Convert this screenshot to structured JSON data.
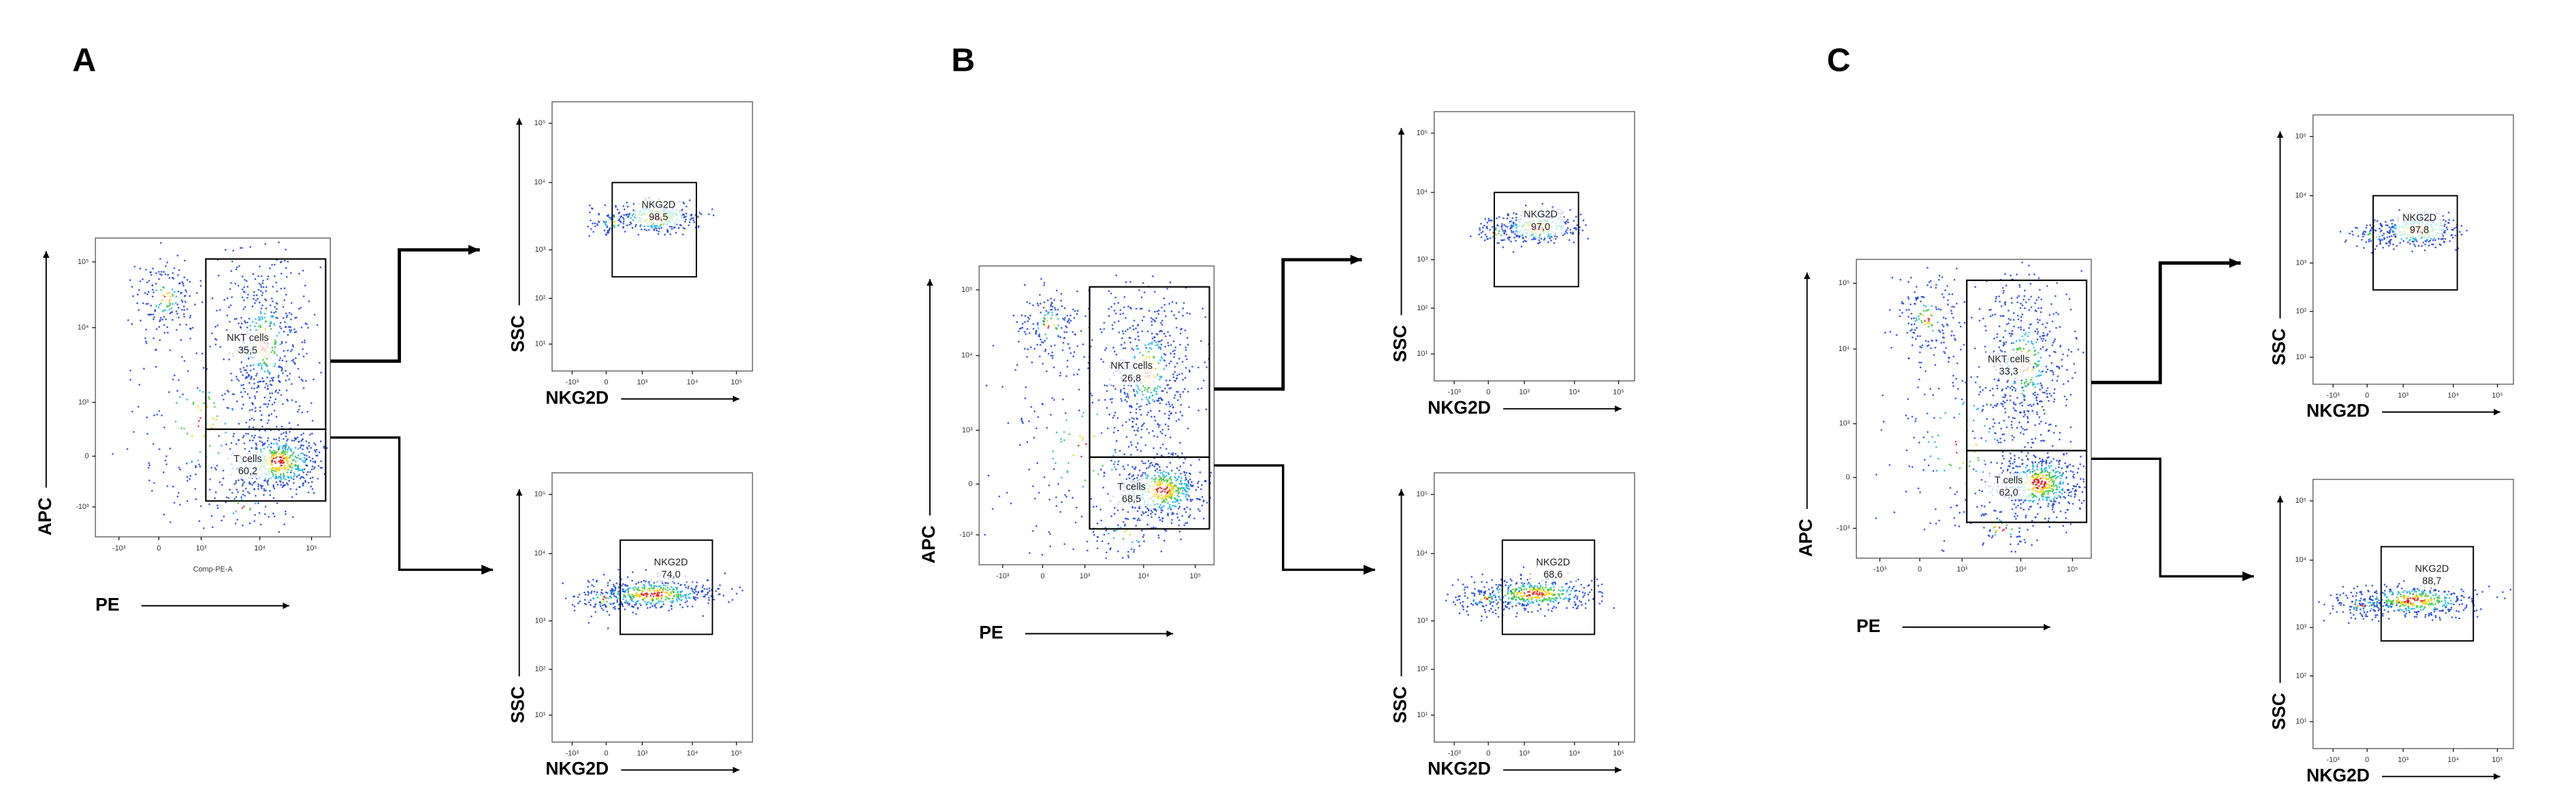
{
  "panels": [
    {
      "label": "A",
      "main": {
        "x_label": "PE",
        "y_label": "APC",
        "x_axis_title": "Comp-PE-A",
        "x_ticks": [
          "-10³",
          "0",
          "10³",
          "10⁴",
          "10⁵"
        ],
        "y_ticks": [
          "-10³",
          "0",
          "10³",
          "10⁴",
          "10⁵"
        ],
        "gates": [
          {
            "name": "NKT cells",
            "value": "35,5"
          },
          {
            "name": "T cells",
            "value": "60,2"
          }
        ]
      },
      "subplots": [
        {
          "x_label": "NKG2D",
          "y_label": "SSC",
          "x_ticks": [
            "-10³",
            "0",
            "10³",
            "10⁴",
            "10⁵"
          ],
          "y_ticks": [
            "10¹",
            "10²",
            "10³",
            "10⁴",
            "10⁵"
          ],
          "gate": {
            "name": "NKG2D",
            "value": "98,5"
          }
        },
        {
          "x_label": "NKG2D",
          "y_label": "SSC",
          "x_ticks": [
            "-10³",
            "0",
            "10³",
            "10⁴",
            "10⁵"
          ],
          "y_ticks": [
            "10¹",
            "10²",
            "10³",
            "10⁴",
            "10⁵"
          ],
          "gate": {
            "name": "NKG2D",
            "value": "74,0"
          }
        }
      ]
    },
    {
      "label": "B",
      "main": {
        "x_label": "PE",
        "y_label": "APC",
        "x_ticks": [
          "-10³",
          "0",
          "10³",
          "10⁴",
          "10⁵"
        ],
        "y_ticks": [
          "-10³",
          "0",
          "10³",
          "10⁴",
          "10⁵"
        ],
        "gates": [
          {
            "name": "NKT cells",
            "value": "26,8"
          },
          {
            "name": "T cells",
            "value": "68,5"
          }
        ]
      },
      "subplots": [
        {
          "x_label": "NKG2D",
          "y_label": "SSC",
          "x_ticks": [
            "-10³",
            "0",
            "10³",
            "10⁴",
            "10⁵"
          ],
          "y_ticks": [
            "10¹",
            "10²",
            "10³",
            "10⁴",
            "10⁵"
          ],
          "gate": {
            "name": "NKG2D",
            "value": "97,0"
          }
        },
        {
          "x_label": "NKG2D",
          "y_label": "SSC",
          "x_ticks": [
            "-10³",
            "0",
            "10³",
            "10⁴",
            "10⁵"
          ],
          "y_ticks": [
            "10¹",
            "10²",
            "10³",
            "10⁴",
            "10⁵"
          ],
          "gate": {
            "name": "NKG2D",
            "value": "68,6"
          }
        }
      ]
    },
    {
      "label": "C",
      "main": {
        "x_label": "PE",
        "y_label": "APC",
        "x_ticks": [
          "-10³",
          "0",
          "10³",
          "10⁴",
          "10⁵"
        ],
        "y_ticks": [
          "-10³",
          "0",
          "10³",
          "10⁴",
          "10⁵"
        ],
        "gates": [
          {
            "name": "NKT cells",
            "value": "33,3"
          },
          {
            "name": "T cells",
            "value": "62,0"
          }
        ]
      },
      "subplots": [
        {
          "x_label": "NKG2D",
          "y_label": "SSC",
          "x_ticks": [
            "-10³",
            "0",
            "10³",
            "10⁴",
            "10⁵"
          ],
          "y_ticks": [
            "10¹",
            "10²",
            "10³",
            "10⁴",
            "10⁵"
          ],
          "gate": {
            "name": "NKG2D",
            "value": "97,8"
          }
        },
        {
          "x_label": "NKG2D",
          "y_label": "SSC",
          "x_ticks": [
            "-10³",
            "0",
            "10³",
            "10⁴",
            "10⁵"
          ],
          "y_ticks": [
            "10¹",
            "10²",
            "10³",
            "10⁴",
            "10⁵"
          ],
          "gate": {
            "name": "NKG2D",
            "value": "88,7"
          }
        }
      ]
    }
  ]
}
